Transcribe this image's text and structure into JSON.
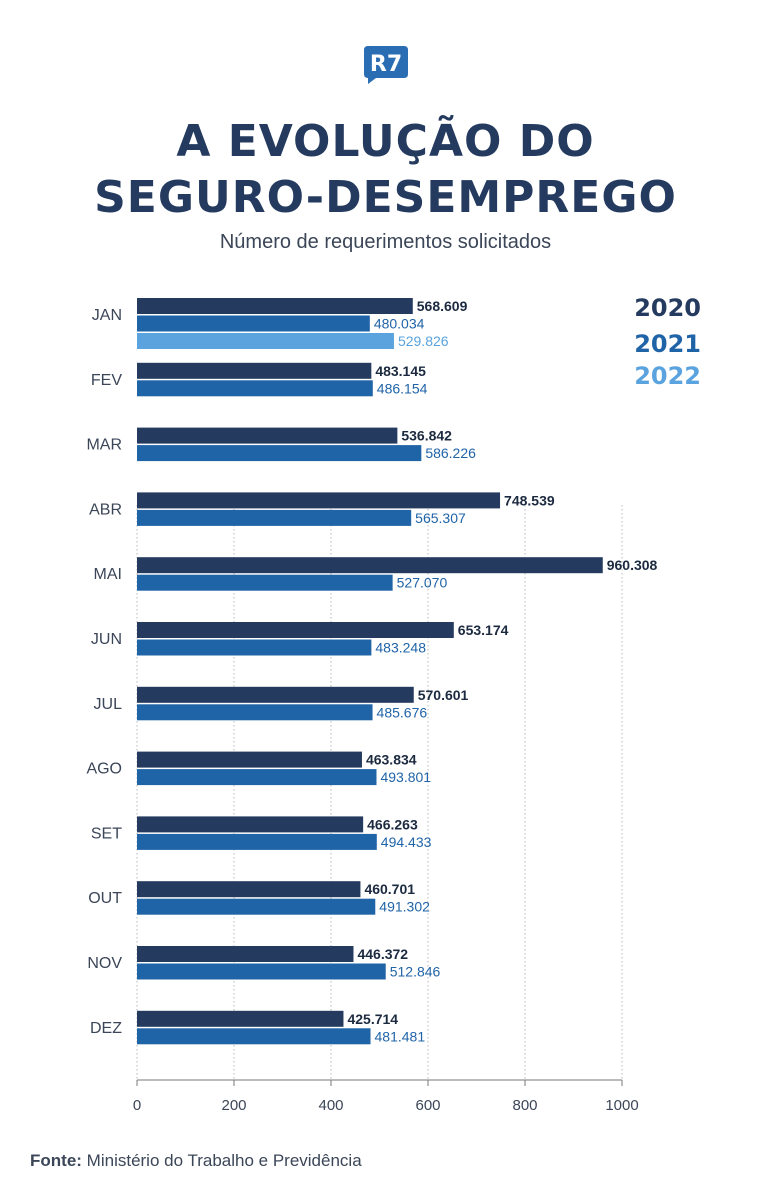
{
  "header": {
    "logo_text": "R7",
    "title_line1": "A EVOLUÇÃO DO",
    "title_line2": "SEGURO-DESEMPREGO",
    "subtitle": "Número de requerimentos solicitados"
  },
  "source": {
    "label": "Fonte:",
    "text": "Ministério do Trabalho e Previdência"
  },
  "colors": {
    "2020": "#243a5e",
    "2021": "#2064a8",
    "2022": "#5aa3de",
    "grid": "#b8b8b8",
    "logo": "#2b6db3"
  },
  "chart_data": {
    "type": "bar",
    "orientation": "horizontal",
    "categories": [
      "JAN",
      "FEV",
      "MAR",
      "ABR",
      "MAI",
      "JUN",
      "JUL",
      "AGO",
      "SET",
      "OUT",
      "NOV",
      "DEZ"
    ],
    "series": [
      {
        "name": "2020",
        "values": [
          568609,
          483145,
          536842,
          748539,
          960308,
          653174,
          570601,
          463834,
          466263,
          460701,
          446372,
          425714
        ],
        "labels": [
          "568.609",
          "483.145",
          "536.842",
          "748.539",
          "960.308",
          "653.174",
          "570.601",
          "463.834",
          "466.263",
          "460.701",
          "446.372",
          "425.714"
        ]
      },
      {
        "name": "2021",
        "values": [
          480034,
          486154,
          586226,
          565307,
          527070,
          483248,
          485676,
          493801,
          494433,
          491302,
          512846,
          481481
        ],
        "labels": [
          "480.034",
          "486.154",
          "586.226",
          "565.307",
          "527.070",
          "483.248",
          "485.676",
          "493.801",
          "494.433",
          "491.302",
          "512.846",
          "481.481"
        ]
      },
      {
        "name": "2022",
        "values": [
          529826,
          null,
          null,
          null,
          null,
          null,
          null,
          null,
          null,
          null,
          null,
          null
        ],
        "labels": [
          "529.826",
          "",
          "",
          "",
          "",
          "",
          "",
          "",
          "",
          "",
          "",
          ""
        ]
      }
    ],
    "xticks": [
      "0",
      "200",
      "400",
      "600",
      "800",
      "1000"
    ],
    "xlim": [
      0,
      1000000
    ],
    "grid": "vertical dotted",
    "legend_placement": "top-right"
  }
}
